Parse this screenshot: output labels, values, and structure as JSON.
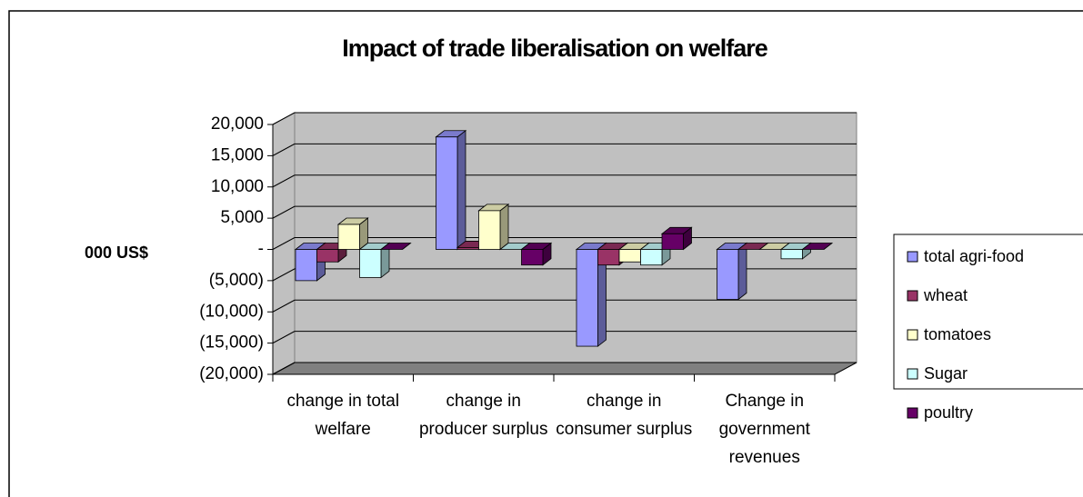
{
  "chart_data": {
    "type": "bar3d",
    "title": "Impact of trade liberalisation on welfare",
    "y_label": "000 US$",
    "categories": [
      "change in total welfare",
      "change in producer surplus",
      "change in consumer surplus",
      "Change in government revenues"
    ],
    "series": [
      {
        "name": "total agri-food",
        "color": "#9999ff",
        "values": [
          -5000,
          18000,
          -15500,
          -8000
        ]
      },
      {
        "name": "wheat",
        "color": "#993366",
        "values": [
          -2000,
          300,
          -2500,
          0
        ]
      },
      {
        "name": "tomatoes",
        "color": "#ffffcc",
        "values": [
          4000,
          6200,
          -2000,
          0
        ]
      },
      {
        "name": "Sugar",
        "color": "#ccffff",
        "values": [
          -4500,
          0,
          -2500,
          -1500
        ]
      },
      {
        "name": "poultry",
        "color": "#660066",
        "values": [
          0,
          -2500,
          2500,
          0
        ]
      }
    ],
    "ylim": [
      -20000,
      20000
    ],
    "yticks": [
      {
        "value": -20000,
        "label": "(20,000)"
      },
      {
        "value": -15000,
        "label": "(15,000)"
      },
      {
        "value": -10000,
        "label": "(10,000)"
      },
      {
        "value": -5000,
        "label": "(5,000)"
      },
      {
        "value": 0,
        "label": "-"
      },
      {
        "value": 5000,
        "label": "5,000"
      },
      {
        "value": 10000,
        "label": "10,000"
      },
      {
        "value": 15000,
        "label": "15,000"
      },
      {
        "value": 20000,
        "label": "20,000"
      }
    ],
    "grid": true,
    "legend": "right"
  }
}
